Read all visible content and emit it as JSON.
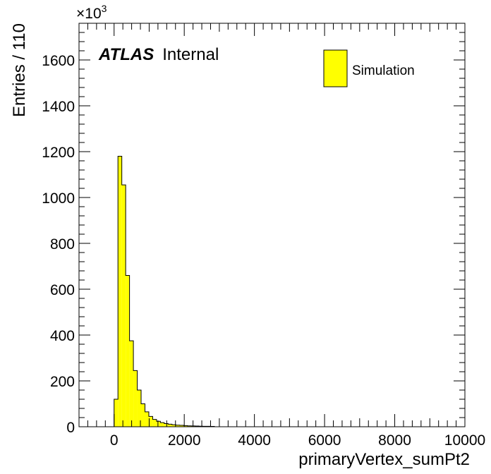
{
  "chart_data": {
    "type": "bar",
    "title": "",
    "xlabel": "primaryVertex_sumPt2",
    "ylabel": "Entries / 110",
    "exponent_base": "×10",
    "exponent_power": "3",
    "xlim": [
      -1000,
      10000
    ],
    "ylim": [
      0,
      1760
    ],
    "x_ticks": [
      0,
      2000,
      4000,
      6000,
      8000,
      10000
    ],
    "x_tick_labels": [
      "0",
      "2000",
      "4000",
      "6000",
      "8000",
      "10000"
    ],
    "y_ticks": [
      0,
      200,
      400,
      600,
      800,
      1000,
      1200,
      1400,
      1600
    ],
    "y_tick_labels": [
      "0",
      "200",
      "400",
      "600",
      "800",
      "1000",
      "1200",
      "1400",
      "1600"
    ],
    "bin_width": 110,
    "bin_edges_start": 0,
    "values": [
      120,
      1180,
      1055,
      660,
      375,
      245,
      160,
      100,
      65,
      45,
      32,
      24,
      18,
      14,
      11,
      9,
      7,
      6,
      5,
      4,
      3.5,
      3,
      2.5,
      2,
      1.8,
      1.5
    ],
    "series": [
      {
        "name": "Simulation",
        "color": "#ffff00"
      }
    ],
    "legend": {
      "placement": "top-right",
      "entries": [
        "Simulation"
      ]
    },
    "label_bold": "ATLAS",
    "label_normal": "Internal",
    "grid": false
  }
}
